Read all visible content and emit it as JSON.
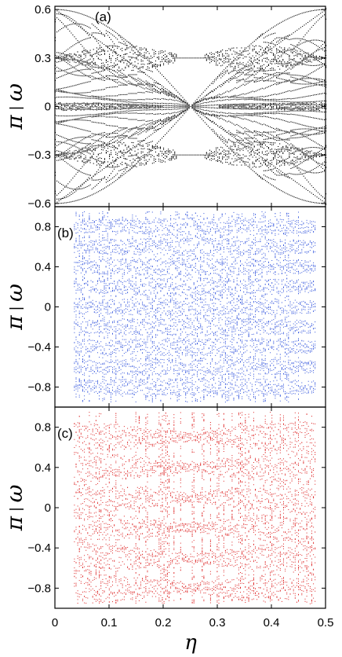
{
  "chart_data": [
    {
      "type": "scatter",
      "panel_label": "(a)",
      "xlim": [
        0,
        0.5
      ],
      "ylim": [
        -0.62,
        0.62
      ],
      "yticks": [
        -0.6,
        -0.3,
        0,
        0.3,
        0.6
      ],
      "ytick_labels": [
        "−0.6",
        "−0.3",
        "0",
        "0.3",
        "0.6"
      ],
      "ylabel": "ω / π",
      "color": "#000000",
      "description_kind": "butterfly spectrum",
      "series": [
        {
          "values_kind": "edge_line",
          "x": [
            0.0,
            0.5
          ],
          "y": [
            0.6,
            -0.6
          ]
        },
        {
          "values_kind": "edge_line",
          "x": [
            0.0,
            0.5
          ],
          "y": [
            -0.6,
            0.6
          ]
        }
      ]
    },
    {
      "type": "scatter",
      "panel_label": "(b)",
      "xlim": [
        0,
        0.5
      ],
      "ylim": [
        -1.0,
        1.0
      ],
      "yticks": [
        -0.8,
        -0.4,
        0,
        0.4,
        0.8
      ],
      "ytick_labels": [
        "−0.8",
        "−0.4",
        "0",
        "0.4",
        "0.8"
      ],
      "ylabel": "ω / π",
      "color": "#3355dd",
      "band_centers": [
        -0.8,
        -0.6,
        -0.4,
        -0.2,
        0,
        0.2,
        0.4,
        0.6,
        0.8
      ]
    },
    {
      "type": "scatter",
      "panel_label": "(c)",
      "xlim": [
        0,
        0.5
      ],
      "ylim": [
        -1.0,
        1.0
      ],
      "yticks": [
        -0.8,
        -0.4,
        0,
        0.4,
        0.8
      ],
      "ytick_labels": [
        "−0.8",
        "−0.4",
        "0",
        "0.4",
        "0.8"
      ],
      "ylabel": "ω / π",
      "color": "#dd2222",
      "band_centers": [
        -0.8,
        -0.5,
        -0.2,
        0.1,
        0.4,
        0.7
      ]
    }
  ],
  "x_axis": {
    "xlabel": "η",
    "xticks": [
      0,
      0.1,
      0.2,
      0.3,
      0.4,
      0.5
    ],
    "xtick_labels": [
      "0",
      "0.1",
      "0.2",
      "0.3",
      "0.4",
      "0.5"
    ]
  }
}
